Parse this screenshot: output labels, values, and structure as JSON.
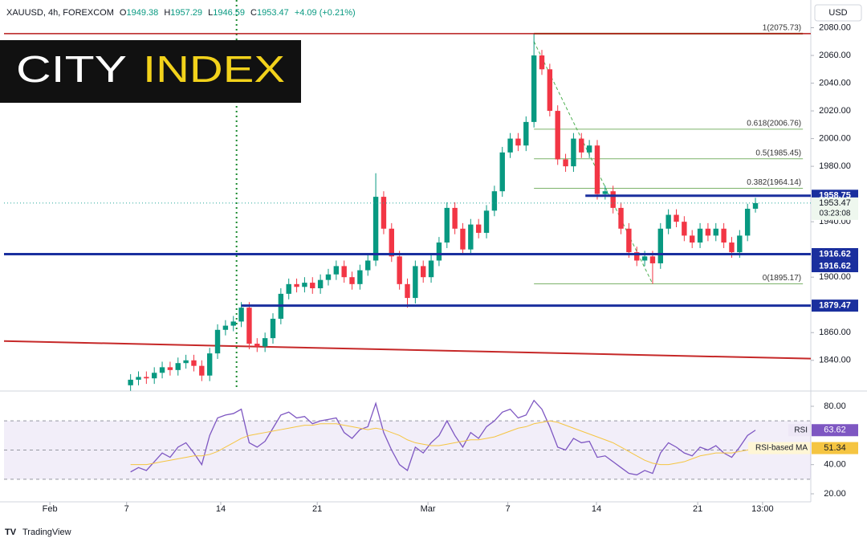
{
  "header": {
    "symbol": "XAUUSD, 4h, FOREXCOM",
    "o": "O",
    "h": "H",
    "l": "L",
    "c": "C",
    "change": "+4.09 (+0.21%)"
  },
  "logo": {
    "word1": "CITY",
    "word2": "INDEX"
  },
  "currency": "USD",
  "footer": "TradingView",
  "chart_data": [
    {
      "type": "candlestick",
      "x": [
        0,
        1,
        2,
        3,
        4,
        5,
        6,
        7,
        8,
        9,
        10,
        11,
        12,
        13,
        14,
        15,
        16,
        17,
        18,
        19,
        20,
        21,
        22,
        23,
        24,
        25,
        26,
        27,
        28,
        29,
        30,
        31,
        32,
        33,
        34,
        35,
        36,
        37,
        38,
        39,
        40,
        41,
        42,
        43,
        44,
        45,
        46,
        47,
        48,
        49,
        50,
        51,
        52,
        53,
        54,
        55,
        56,
        57,
        58,
        59,
        60,
        61,
        62,
        63,
        64,
        65,
        66,
        67,
        68,
        69,
        70,
        71,
        72,
        73,
        74,
        75,
        76,
        77,
        78,
        79
      ],
      "open": [
        1822,
        1826,
        1828,
        1827,
        1831,
        1835,
        1833,
        1838,
        1840,
        1836,
        1829,
        1845,
        1862,
        1865,
        1868,
        1878,
        1852,
        1850,
        1856,
        1870,
        1888,
        1895,
        1893,
        1896,
        1892,
        1898,
        1902,
        1908,
        1900,
        1895,
        1905,
        1912,
        1958,
        1935,
        1915,
        1895,
        1885,
        1908,
        1900,
        1912,
        1925,
        1950,
        1935,
        1920,
        1938,
        1932,
        1948,
        1962,
        1990,
        2000,
        1995,
        2012,
        2060,
        2050,
        2020,
        1985,
        1980,
        2000,
        1990,
        1995,
        1960,
        1962,
        1950,
        1935,
        1918,
        1912,
        1915,
        1910,
        1935,
        1945,
        1940,
        1930,
        1925,
        1935,
        1930,
        1935,
        1925,
        1918,
        1930,
        1949.38
      ],
      "high": [
        1830,
        1832,
        1832,
        1835,
        1839,
        1839,
        1842,
        1844,
        1844,
        1840,
        1849,
        1866,
        1869,
        1872,
        1882,
        1882,
        1856,
        1860,
        1874,
        1892,
        1899,
        1899,
        1900,
        1900,
        1902,
        1906,
        1912,
        1912,
        1904,
        1909,
        1916,
        1975,
        1962,
        1939,
        1919,
        1899,
        1912,
        1912,
        1916,
        1929,
        1954,
        1954,
        1939,
        1942,
        1942,
        1952,
        1966,
        1994,
        2004,
        2004,
        2016,
        2075.73,
        2064,
        2054,
        2024,
        1989,
        2004,
        2004,
        1999,
        1999,
        1966,
        1966,
        1954,
        1939,
        1922,
        1919,
        1919,
        1939,
        1949,
        1949,
        1944,
        1934,
        1939,
        1939,
        1939,
        1939,
        1929,
        1934,
        1953,
        1957.29
      ],
      "low": [
        1818,
        1822,
        1823,
        1823,
        1827,
        1829,
        1829,
        1834,
        1832,
        1825,
        1825,
        1841,
        1858,
        1861,
        1864,
        1848,
        1846,
        1846,
        1852,
        1866,
        1884,
        1889,
        1889,
        1888,
        1888,
        1894,
        1898,
        1896,
        1891,
        1891,
        1901,
        1908,
        1931,
        1911,
        1891,
        1878,
        1881,
        1896,
        1896,
        1908,
        1921,
        1931,
        1916,
        1916,
        1928,
        1928,
        1944,
        1958,
        1986,
        1991,
        1991,
        2008,
        2046,
        2016,
        1981,
        1976,
        1976,
        1986,
        1986,
        1956,
        1956,
        1946,
        1931,
        1914,
        1908,
        1908,
        1895.17,
        1906,
        1931,
        1936,
        1926,
        1921,
        1921,
        1926,
        1926,
        1921,
        1914,
        1914,
        1926,
        1946.59
      ],
      "close": [
        1826,
        1828,
        1827,
        1831,
        1835,
        1833,
        1838,
        1840,
        1836,
        1829,
        1845,
        1862,
        1865,
        1868,
        1878,
        1852,
        1850,
        1856,
        1870,
        1888,
        1895,
        1893,
        1896,
        1892,
        1898,
        1902,
        1908,
        1900,
        1895,
        1905,
        1912,
        1958,
        1935,
        1915,
        1895,
        1885,
        1908,
        1900,
        1912,
        1925,
        1950,
        1935,
        1920,
        1938,
        1932,
        1948,
        1962,
        1990,
        2000,
        1995,
        2012,
        2060,
        2050,
        2020,
        1985,
        1980,
        2000,
        1990,
        1995,
        1960,
        1962,
        1950,
        1935,
        1918,
        1912,
        1915,
        1910,
        1935,
        1945,
        1940,
        1930,
        1925,
        1935,
        1930,
        1935,
        1925,
        1918,
        1930,
        1949.38,
        1953.47
      ],
      "up_color": "#089981",
      "down_color": "#f23645",
      "xlim": [
        -16,
        86
      ],
      "xticks": [
        {
          "value": -10.2,
          "label": "Feb"
        },
        {
          "value": -0.5,
          "label": "7"
        },
        {
          "value": 11.4,
          "label": "14"
        },
        {
          "value": 23.6,
          "label": "21"
        },
        {
          "value": 37.6,
          "label": "Mar"
        },
        {
          "value": 47.7,
          "label": "7"
        },
        {
          "value": 58.9,
          "label": "14"
        },
        {
          "value": 71.7,
          "label": "21"
        },
        {
          "value": 79.9,
          "label": "13:00"
        }
      ],
      "ylim": [
        1819,
        2100
      ],
      "yticks": [
        {
          "value": 2080,
          "label": "2080.00"
        },
        {
          "value": 2060,
          "label": "2060.00"
        },
        {
          "value": 2040,
          "label": "2040.00"
        },
        {
          "value": 2020,
          "label": "2020.00"
        },
        {
          "value": 2000,
          "label": "2000.00"
        },
        {
          "value": 1980,
          "label": "1980.00"
        },
        {
          "value": 1940,
          "label": "1940.00"
        },
        {
          "value": 1900,
          "label": "1900.00"
        },
        {
          "value": 1860,
          "label": "1860.00"
        },
        {
          "value": 1840,
          "label": "1840.00"
        }
      ],
      "grid": false,
      "countdown": "03:23:08",
      "levels": [
        {
          "value": 2075.73,
          "from": -16,
          "color": "#b71c1c",
          "tag": false
        },
        {
          "value": 1958.75,
          "from": 57.5,
          "color": "#1a2f9e",
          "tag": true
        },
        {
          "value": 1916.62,
          "from": -16,
          "color": "#1a2f9e",
          "tag": true
        },
        {
          "value": 1916.62,
          "from": -16,
          "color": "#1a2f9e",
          "tag": true
        },
        {
          "value": 1879.47,
          "from": 14,
          "color": "#1a2f9e",
          "tag": true
        }
      ],
      "fib_from": 51,
      "fib_to": 85,
      "fib_levels": [
        {
          "label": "1(2075.73)",
          "value": 2075.73,
          "color": "#6b6b1e"
        },
        {
          "label": "0.618(2006.76)",
          "value": 2006.76,
          "color": "#7cb36a"
        },
        {
          "label": "0.5(1985.45)",
          "value": 1985.45,
          "color": "#7cb36a"
        },
        {
          "label": "0.382(1964.14)",
          "value": 1964.14,
          "color": "#7cb36a"
        },
        {
          "label": "0(1895.17)",
          "value": 1895.17,
          "color": "#7cb36a"
        }
      ],
      "trendline": {
        "x": [
          -16,
          86
        ],
        "y": [
          1853.9,
          1841.2
        ],
        "color": "#c62828"
      },
      "fib_diagonal": {
        "x": [
          51,
          66
        ],
        "y": [
          2070,
          1895.17
        ],
        "color": "#4caf50"
      },
      "vline_x": 13.4,
      "vline_color": "#1b8a2e"
    },
    {
      "type": "line",
      "x": [
        0,
        1,
        2,
        3,
        4,
        5,
        6,
        7,
        8,
        9,
        10,
        11,
        12,
        13,
        14,
        15,
        16,
        17,
        18,
        19,
        20,
        21,
        22,
        23,
        24,
        25,
        26,
        27,
        28,
        29,
        30,
        31,
        32,
        33,
        34,
        35,
        36,
        37,
        38,
        39,
        40,
        41,
        42,
        43,
        44,
        45,
        46,
        47,
        48,
        49,
        50,
        51,
        52,
        53,
        54,
        55,
        56,
        57,
        58,
        59,
        60,
        61,
        62,
        63,
        64,
        65,
        66,
        67,
        68,
        69,
        70,
        71,
        72,
        73,
        74,
        75,
        76,
        77,
        78,
        79
      ],
      "series": [
        {
          "name": "RSI",
          "color": "#7e57c2",
          "values": [
            35,
            38,
            36,
            42,
            48,
            45,
            52,
            55,
            48,
            40,
            60,
            72,
            74,
            75,
            78,
            55,
            52,
            56,
            65,
            74,
            76,
            72,
            73,
            68,
            70,
            71,
            72,
            62,
            58,
            64,
            66,
            82,
            62,
            50,
            40,
            36,
            52,
            48,
            55,
            60,
            70,
            60,
            52,
            62,
            58,
            66,
            70,
            76,
            78,
            72,
            74,
            84,
            78,
            66,
            52,
            50,
            58,
            55,
            56,
            45,
            46,
            42,
            38,
            34,
            33,
            36,
            34,
            48,
            55,
            52,
            48,
            46,
            52,
            50,
            53,
            48,
            45,
            52,
            60,
            63.62
          ]
        },
        {
          "name": "RSI-based MA",
          "color": "#f5c542",
          "values": [
            40,
            40,
            40,
            41,
            42,
            43,
            44,
            45,
            46,
            46,
            47,
            49,
            52,
            55,
            58,
            60,
            61,
            62,
            63,
            64,
            65,
            66,
            67,
            67,
            68,
            68,
            68,
            67,
            66,
            65,
            64,
            65,
            64,
            62,
            60,
            57,
            55,
            54,
            53,
            53,
            54,
            55,
            56,
            57,
            57,
            58,
            59,
            61,
            63,
            65,
            66,
            68,
            69,
            70,
            69,
            67,
            65,
            63,
            61,
            59,
            57,
            55,
            52,
            49,
            46,
            43,
            41,
            40,
            40,
            41,
            42,
            44,
            46,
            47,
            48,
            48,
            48,
            49,
            50,
            51.34
          ]
        }
      ],
      "xlim": [
        -16,
        86
      ],
      "ylim": [
        14.5,
        88.8
      ],
      "yticks": [
        {
          "value": 80,
          "label": "80.00"
        },
        {
          "value": 40,
          "label": "40.00"
        },
        {
          "value": 20,
          "label": "20.00"
        }
      ],
      "bands": {
        "upper": 70,
        "middle": 50,
        "lower": 30
      }
    }
  ]
}
